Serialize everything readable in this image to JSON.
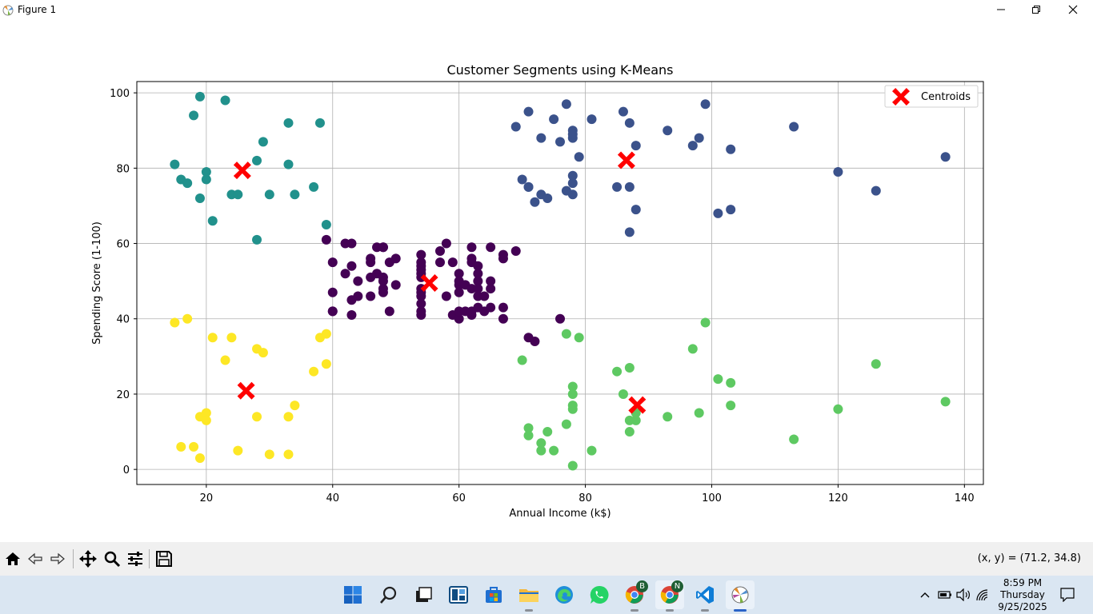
{
  "window": {
    "title": "Figure 1",
    "buttons": [
      "minimize",
      "maximize",
      "close"
    ]
  },
  "chart_data": {
    "type": "scatter",
    "title": "Customer Segments using K-Means",
    "xlabel": "Annual Income (k$)",
    "ylabel": "Spending Score (1-100)",
    "xlim": [
      9,
      143
    ],
    "ylim": [
      -4,
      103
    ],
    "xticks": [
      20,
      40,
      60,
      80,
      100,
      120,
      140
    ],
    "yticks": [
      0,
      20,
      40,
      60,
      80,
      100
    ],
    "grid": true,
    "legend": {
      "position": "top-right",
      "entries": [
        {
          "label": "Centroids",
          "marker": "X",
          "color": "#ff0000"
        }
      ]
    },
    "series": [
      {
        "color": "#440154",
        "points": [
          [
            39,
            61
          ],
          [
            40,
            55
          ],
          [
            40,
            47
          ],
          [
            40,
            42
          ],
          [
            40,
            42
          ],
          [
            42,
            52
          ],
          [
            42,
            60
          ],
          [
            43,
            54
          ],
          [
            43,
            60
          ],
          [
            43,
            45
          ],
          [
            43,
            41
          ],
          [
            44,
            50
          ],
          [
            44,
            46
          ],
          [
            46,
            51
          ],
          [
            46,
            46
          ],
          [
            46,
            56
          ],
          [
            46,
            55
          ],
          [
            47,
            52
          ],
          [
            47,
            59
          ],
          [
            48,
            51
          ],
          [
            48,
            59
          ],
          [
            48,
            50
          ],
          [
            48,
            48
          ],
          [
            48,
            59
          ],
          [
            48,
            47
          ],
          [
            49,
            55
          ],
          [
            49,
            42
          ],
          [
            50,
            49
          ],
          [
            50,
            56
          ],
          [
            54,
            47
          ],
          [
            54,
            54
          ],
          [
            54,
            53
          ],
          [
            54,
            48
          ],
          [
            54,
            52
          ],
          [
            54,
            42
          ],
          [
            54,
            51
          ],
          [
            54,
            55
          ],
          [
            54,
            41
          ],
          [
            54,
            44
          ],
          [
            54,
            57
          ],
          [
            54,
            46
          ],
          [
            57,
            58
          ],
          [
            57,
            55
          ],
          [
            58,
            60
          ],
          [
            58,
            46
          ],
          [
            59,
            55
          ],
          [
            59,
            41
          ],
          [
            60,
            49
          ],
          [
            60,
            40
          ],
          [
            60,
            42
          ],
          [
            60,
            52
          ],
          [
            60,
            47
          ],
          [
            60,
            50
          ],
          [
            61,
            42
          ],
          [
            61,
            49
          ],
          [
            62,
            41
          ],
          [
            62,
            48
          ],
          [
            62,
            59
          ],
          [
            62,
            55
          ],
          [
            62,
            56
          ],
          [
            62,
            42
          ],
          [
            63,
            50
          ],
          [
            63,
            46
          ],
          [
            63,
            43
          ],
          [
            63,
            48
          ],
          [
            63,
            52
          ],
          [
            63,
            54
          ],
          [
            64,
            42
          ],
          [
            64,
            46
          ],
          [
            65,
            48
          ],
          [
            65,
            50
          ],
          [
            65,
            43
          ],
          [
            65,
            59
          ],
          [
            67,
            43
          ],
          [
            67,
            57
          ],
          [
            67,
            56
          ],
          [
            67,
            40
          ],
          [
            69,
            58
          ],
          [
            76,
            40
          ],
          [
            71,
            35
          ],
          [
            72,
            34
          ]
        ]
      },
      {
        "color": "#3b528b",
        "points": [
          [
            69,
            91
          ],
          [
            70,
            77
          ],
          [
            71,
            95
          ],
          [
            71,
            75
          ],
          [
            71,
            75
          ],
          [
            72,
            71
          ],
          [
            73,
            88
          ],
          [
            73,
            73
          ],
          [
            74,
            72
          ],
          [
            75,
            93
          ],
          [
            76,
            87
          ],
          [
            77,
            97
          ],
          [
            77,
            74
          ],
          [
            78,
            90
          ],
          [
            78,
            88
          ],
          [
            78,
            76
          ],
          [
            78,
            89
          ],
          [
            78,
            78
          ],
          [
            78,
            73
          ],
          [
            79,
            83
          ],
          [
            81,
            93
          ],
          [
            85,
            75
          ],
          [
            86,
            95
          ],
          [
            87,
            63
          ],
          [
            87,
            75
          ],
          [
            87,
            92
          ],
          [
            88,
            86
          ],
          [
            88,
            69
          ],
          [
            93,
            90
          ],
          [
            97,
            86
          ],
          [
            98,
            88
          ],
          [
            99,
            97
          ],
          [
            101,
            68
          ],
          [
            103,
            85
          ],
          [
            103,
            69
          ],
          [
            113,
            91
          ],
          [
            120,
            79
          ],
          [
            126,
            74
          ],
          [
            137,
            83
          ]
        ]
      },
      {
        "color": "#21918c",
        "points": [
          [
            15,
            81
          ],
          [
            16,
            77
          ],
          [
            17,
            76
          ],
          [
            18,
            94
          ],
          [
            19,
            72
          ],
          [
            19,
            99
          ],
          [
            20,
            77
          ],
          [
            20,
            79
          ],
          [
            21,
            66
          ],
          [
            23,
            98
          ],
          [
            24,
            73
          ],
          [
            25,
            73
          ],
          [
            28,
            82
          ],
          [
            28,
            61
          ],
          [
            29,
            87
          ],
          [
            30,
            73
          ],
          [
            33,
            92
          ],
          [
            33,
            81
          ],
          [
            34,
            73
          ],
          [
            37,
            75
          ],
          [
            38,
            92
          ],
          [
            39,
            65
          ]
        ]
      },
      {
        "color": "#5ec962",
        "points": [
          [
            70,
            29
          ],
          [
            71,
            11
          ],
          [
            71,
            9
          ],
          [
            73,
            5
          ],
          [
            73,
            7
          ],
          [
            74,
            10
          ],
          [
            75,
            5
          ],
          [
            77,
            12
          ],
          [
            77,
            36
          ],
          [
            78,
            22
          ],
          [
            78,
            17
          ],
          [
            78,
            20
          ],
          [
            78,
            16
          ],
          [
            78,
            1
          ],
          [
            79,
            35
          ],
          [
            81,
            5
          ],
          [
            85,
            26
          ],
          [
            86,
            20
          ],
          [
            87,
            27
          ],
          [
            87,
            13
          ],
          [
            87,
            10
          ],
          [
            88,
            13
          ],
          [
            88,
            15
          ],
          [
            93,
            14
          ],
          [
            97,
            32
          ],
          [
            98,
            15
          ],
          [
            99,
            39
          ],
          [
            101,
            24
          ],
          [
            103,
            17
          ],
          [
            103,
            23
          ],
          [
            113,
            8
          ],
          [
            120,
            16
          ],
          [
            126,
            28
          ],
          [
            137,
            18
          ]
        ]
      },
      {
        "color": "#fde725",
        "points": [
          [
            15,
            39
          ],
          [
            16,
            6
          ],
          [
            17,
            40
          ],
          [
            18,
            6
          ],
          [
            19,
            3
          ],
          [
            19,
            14
          ],
          [
            20,
            15
          ],
          [
            20,
            13
          ],
          [
            21,
            35
          ],
          [
            23,
            29
          ],
          [
            24,
            35
          ],
          [
            25,
            5
          ],
          [
            28,
            14
          ],
          [
            28,
            32
          ],
          [
            29,
            31
          ],
          [
            30,
            4
          ],
          [
            33,
            4
          ],
          [
            33,
            14
          ],
          [
            34,
            17
          ],
          [
            37,
            26
          ],
          [
            38,
            35
          ],
          [
            39,
            36
          ],
          [
            39,
            28
          ]
        ]
      }
    ],
    "centroids": [
      [
        25.7,
        79.4
      ],
      [
        86.5,
        82.1
      ],
      [
        55.3,
        49.5
      ],
      [
        88.2,
        17.1
      ],
      [
        26.3,
        20.9
      ]
    ]
  },
  "toolbar": {
    "buttons": [
      {
        "name": "home-button",
        "icon": "home-icon"
      },
      {
        "name": "back-button",
        "icon": "arrow-left-icon"
      },
      {
        "name": "forward-button",
        "icon": "arrow-right-icon"
      },
      {
        "name": "pan-button",
        "icon": "move-icon"
      },
      {
        "name": "zoom-button",
        "icon": "magnifier-icon"
      },
      {
        "name": "configure-subplots-button",
        "icon": "sliders-icon"
      },
      {
        "name": "save-button",
        "icon": "save-icon"
      }
    ],
    "coords": "(x, y) = (71.2, 34.8)"
  },
  "taskbar": {
    "apps": [
      "start",
      "search",
      "task-view",
      "widgets",
      "store",
      "file-explorer",
      "edge",
      "whatsapp",
      "chrome-profile-b",
      "chrome-profile-n",
      "vscode",
      "python-figure"
    ],
    "chrome_profile_b": "B",
    "chrome_profile_n": "N",
    "clock": {
      "time": "8:59 PM",
      "day": "Thursday",
      "date": "9/25/2025"
    }
  }
}
